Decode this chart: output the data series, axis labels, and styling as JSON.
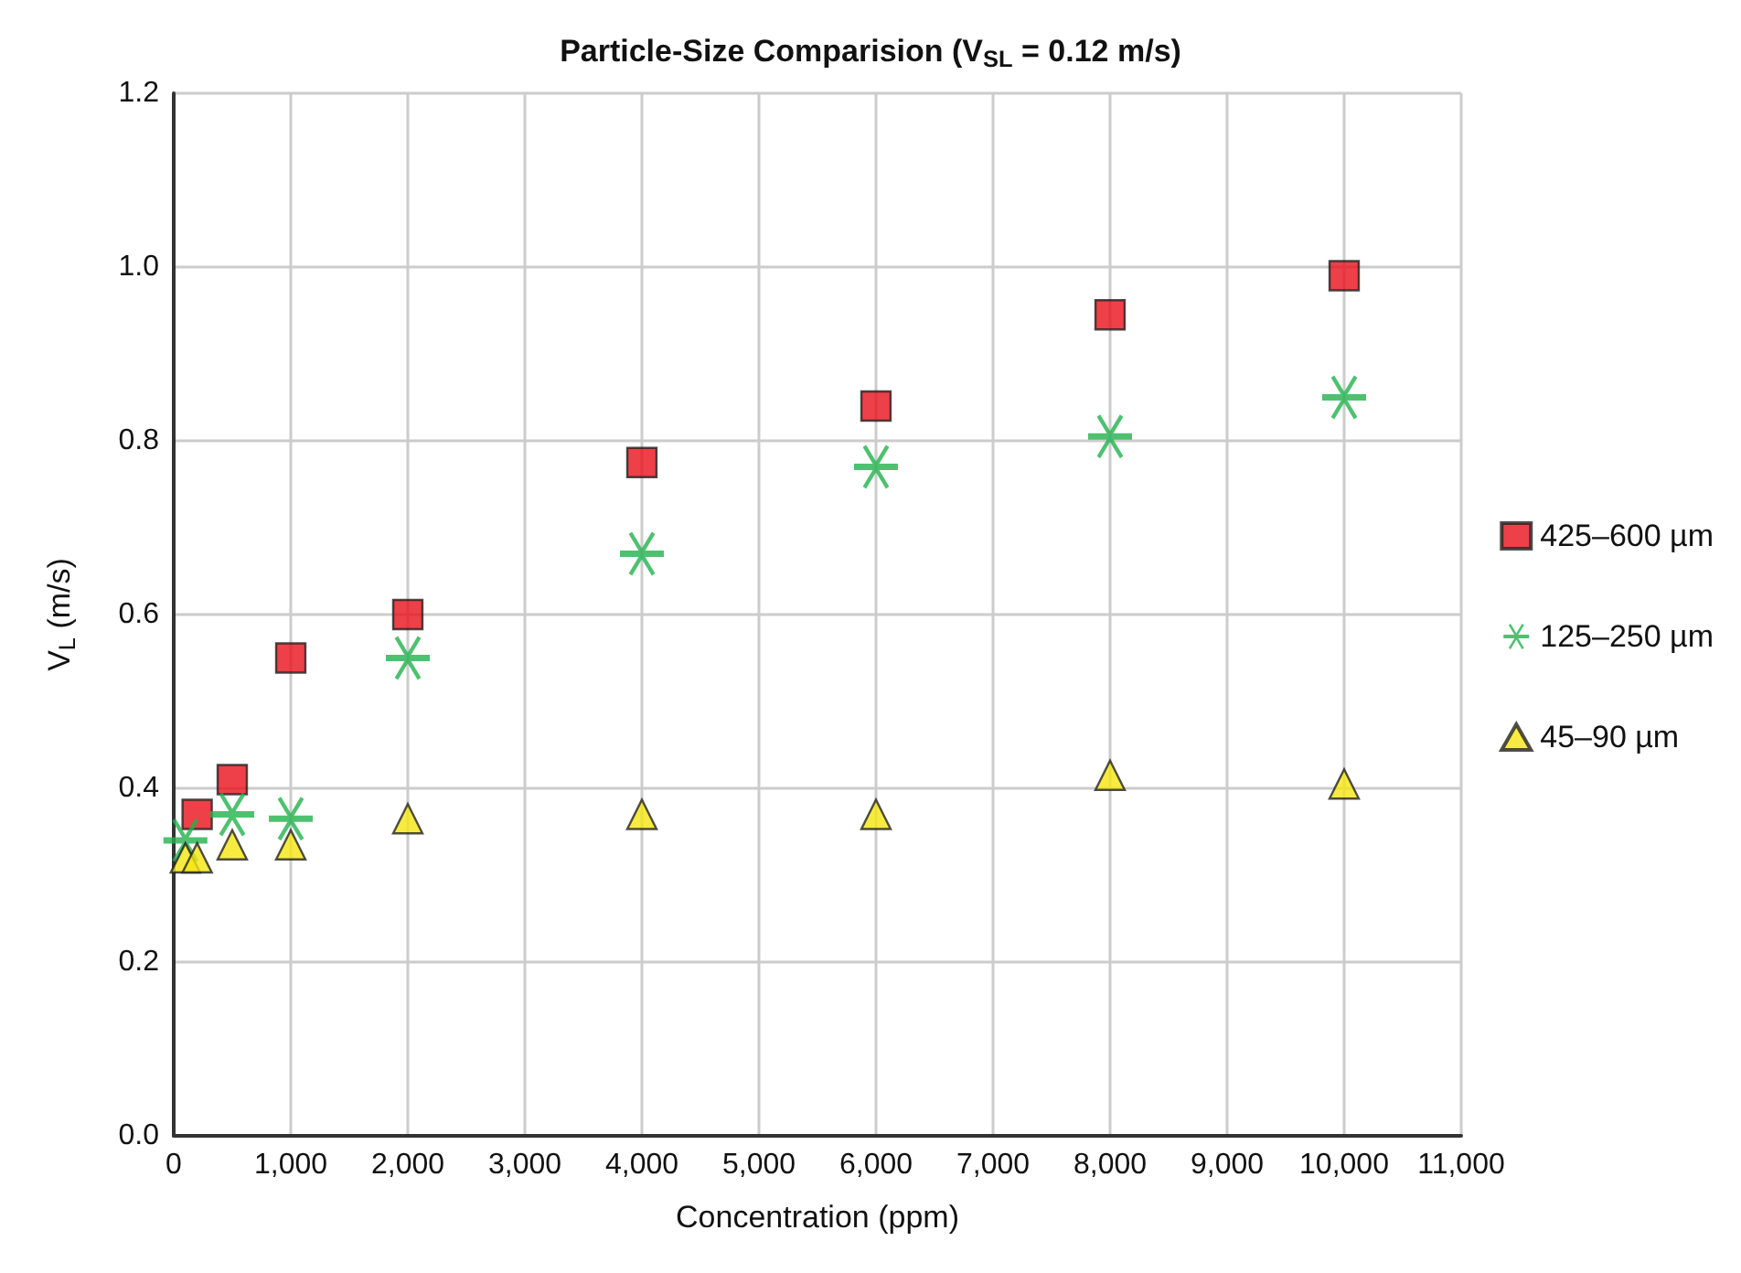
{
  "chart_data": {
    "type": "scatter",
    "title": "Particle-Size Comparision (V$_{SL}$ = 0.12 m/s)",
    "xlabel": "Concentration (ppm)",
    "ylabel": "V$_{L}$ (m/s)",
    "xlim": [
      0,
      11000
    ],
    "xticks": [
      0,
      {
        "value": 1000,
        "label": "1,000"
      },
      {
        "value": 2000,
        "label": "2,000"
      },
      {
        "value": 3000,
        "label": "3,000"
      },
      {
        "value": 4000,
        "label": "4,000"
      },
      {
        "value": 5000,
        "label": "5,000"
      },
      {
        "value": 6000,
        "label": "6,000"
      },
      {
        "value": 7000,
        "label": "7,000"
      },
      {
        "value": 8000,
        "label": "8,000"
      },
      {
        "value": 9000,
        "label": "9,000"
      },
      {
        "value": 10000,
        "label": "10,000"
      },
      {
        "value": 11000,
        "label": "11,000"
      }
    ],
    "ylim": [
      0,
      1.2
    ],
    "yticks": [
      {
        "value": 0,
        "label": "0.0"
      },
      0.2,
      0.4,
      0.6,
      0.8,
      {
        "value": 1,
        "label": "1.0"
      },
      1.2
    ],
    "grid": true,
    "legend": "right",
    "series": [
      {
        "name": "425–600 µm",
        "color": "#e8101a",
        "marker": "square",
        "x": [
          200,
          500,
          1000,
          2000,
          4000,
          6000,
          8000,
          10000
        ],
        "values": [
          0.37,
          0.41,
          0.55,
          0.6,
          0.775,
          0.84,
          0.945,
          0.99
        ]
      },
      {
        "name": "125–250 µm",
        "color": "#22b14c",
        "marker": "cross",
        "x": [
          100,
          500,
          1000,
          2000,
          4000,
          6000,
          8000,
          10000
        ],
        "values": [
          0.34,
          0.37,
          0.365,
          0.55,
          0.67,
          0.77,
          0.805,
          0.85
        ]
      },
      {
        "name": "45–90 µm",
        "color": "#f5e612",
        "marker": "triangle",
        "x": [
          100,
          200,
          500,
          1000,
          2000,
          4000,
          6000,
          8000,
          10000
        ],
        "values": [
          0.32,
          0.32,
          0.335,
          0.335,
          0.365,
          0.37,
          0.37,
          0.415,
          0.405
        ]
      }
    ]
  }
}
